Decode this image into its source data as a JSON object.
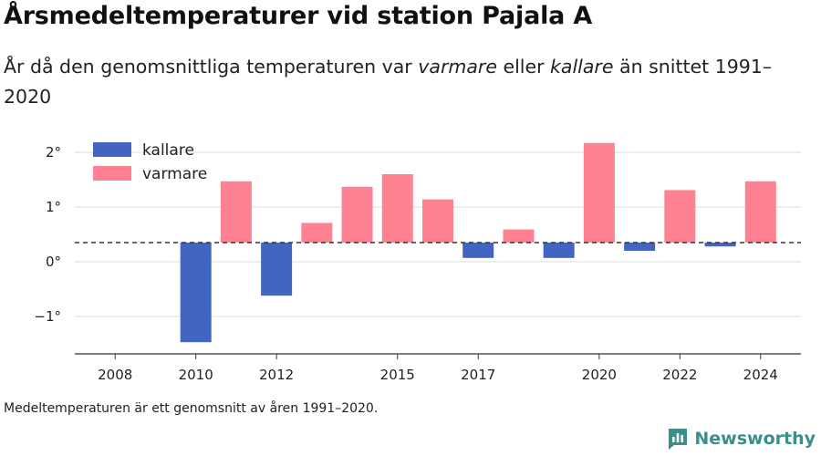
{
  "title": "Årsmedeltemperaturer vid station Pajala A",
  "subtitle": {
    "part1": "År då den genomsnittliga temperaturen var ",
    "warm_word": "varmare",
    "part2": " eller ",
    "cold_word": "kallare",
    "part3": " än snittet 1991–2020"
  },
  "footnote": "Medeltemperaturen är ett genomsnitt av åren 1991–2020.",
  "brand": {
    "name": "Newsworthy",
    "icon": "newsworthy-logo-icon",
    "color": "#3a8f8a"
  },
  "chart_data": {
    "type": "bar",
    "categories": [
      2010,
      2011,
      2012,
      2013,
      2014,
      2015,
      2016,
      2017,
      2018,
      2019,
      2020,
      2021,
      2022,
      2023,
      2024
    ],
    "values": [
      -1.47,
      1.47,
      -0.62,
      0.71,
      1.37,
      1.6,
      1.14,
      0.07,
      0.59,
      0.07,
      2.17,
      0.2,
      1.31,
      0.28,
      1.47
    ],
    "baseline": 0.35,
    "xlim": [
      2007,
      2025
    ],
    "ylim": [
      -1.7,
      2.4
    ],
    "y_ticks": [
      2,
      1,
      0,
      -1
    ],
    "y_tick_labels": [
      "2°",
      "1°",
      "0°",
      "−1°"
    ],
    "x_ticks": [
      2008,
      2010,
      2012,
      2015,
      2017,
      2020,
      2022,
      2024
    ],
    "x_tick_labels": [
      "2008",
      "2010",
      "2012",
      "2015",
      "2017",
      "2020",
      "2022",
      "2024"
    ],
    "legend": {
      "position": "top-left",
      "entries": [
        {
          "label": "kallare",
          "color": "#4165c0"
        },
        {
          "label": "varmare",
          "color": "#ff8293"
        }
      ]
    },
    "colors": {
      "cold": "#4165c0",
      "warm": "#ff8293",
      "grid": "#dddddd",
      "baseline": "#333333",
      "axis": "#333333"
    },
    "grid": true
  }
}
